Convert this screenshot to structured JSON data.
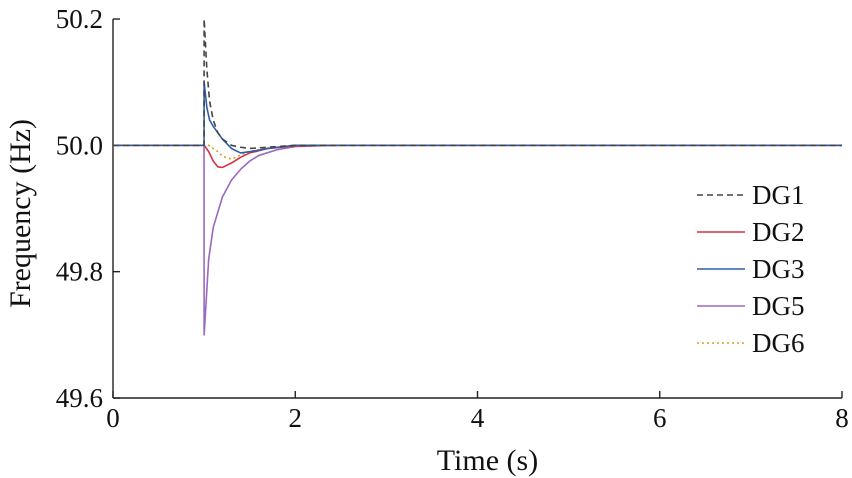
{
  "chart_data": {
    "type": "line",
    "xlabel": "Time (s)",
    "ylabel": "Frequency (Hz)",
    "xlim": [
      0,
      8
    ],
    "ylim": [
      49.6,
      50.2
    ],
    "xticks": [
      0,
      2,
      4,
      6,
      8
    ],
    "yticks": [
      49.6,
      49.8,
      50.0,
      50.2
    ],
    "xtick_labels": [
      "0",
      "2",
      "4",
      "6",
      "8"
    ],
    "ytick_labels": [
      "49.6",
      "49.8",
      "50.0",
      "50.2"
    ],
    "grid": false,
    "legend_position": "right",
    "series": [
      {
        "name": "DG1",
        "color": "#444444",
        "dash": "6,4",
        "x": [
          0,
          0.999,
          1.0,
          1.03,
          1.06,
          1.1,
          1.15,
          1.2,
          1.3,
          1.4,
          1.5,
          1.7,
          2.0,
          2.5,
          8
        ],
        "y": [
          50.0,
          50.0,
          50.2,
          50.12,
          50.07,
          50.04,
          50.02,
          50.01,
          50.0,
          49.997,
          49.995,
          49.997,
          50.0,
          50.0,
          50.0
        ]
      },
      {
        "name": "DG2",
        "color": "#d1343f",
        "dash": "",
        "x": [
          0,
          1.0,
          1.05,
          1.1,
          1.15,
          1.2,
          1.3,
          1.4,
          1.5,
          1.7,
          2.0,
          2.5,
          8
        ],
        "y": [
          50.0,
          50.0,
          49.99,
          49.975,
          49.966,
          49.965,
          49.972,
          49.981,
          49.988,
          49.995,
          49.999,
          50.0,
          50.0
        ]
      },
      {
        "name": "DG3",
        "color": "#2f5ea8",
        "dash": "",
        "x": [
          0,
          0.999,
          1.0,
          1.03,
          1.06,
          1.1,
          1.15,
          1.2,
          1.3,
          1.4,
          1.5,
          1.7,
          2.0,
          2.5,
          8
        ],
        "y": [
          50.0,
          50.0,
          50.1,
          50.06,
          50.04,
          50.03,
          50.02,
          50.01,
          49.995,
          49.988,
          49.99,
          49.995,
          50.0,
          50.0,
          50.0
        ]
      },
      {
        "name": "DG5",
        "color": "#9b68c0",
        "dash": "",
        "x": [
          0,
          0.999,
          1.0,
          1.05,
          1.1,
          1.2,
          1.3,
          1.4,
          1.5,
          1.6,
          1.8,
          2.0,
          2.4,
          8
        ],
        "y": [
          50.0,
          50.0,
          49.7,
          49.82,
          49.87,
          49.918,
          49.945,
          49.962,
          49.975,
          49.984,
          49.993,
          49.998,
          50.0,
          50.0
        ]
      },
      {
        "name": "DG6",
        "color": "#c9a227",
        "dash": "2,3",
        "x": [
          0,
          1.0,
          1.05,
          1.1,
          1.15,
          1.2,
          1.3,
          1.4,
          1.5,
          1.7,
          2.0,
          2.5,
          8
        ],
        "y": [
          50.0,
          50.0,
          50.0,
          49.995,
          49.99,
          49.983,
          49.978,
          49.985,
          49.99,
          49.996,
          50.0,
          50.0,
          50.0
        ]
      }
    ]
  }
}
